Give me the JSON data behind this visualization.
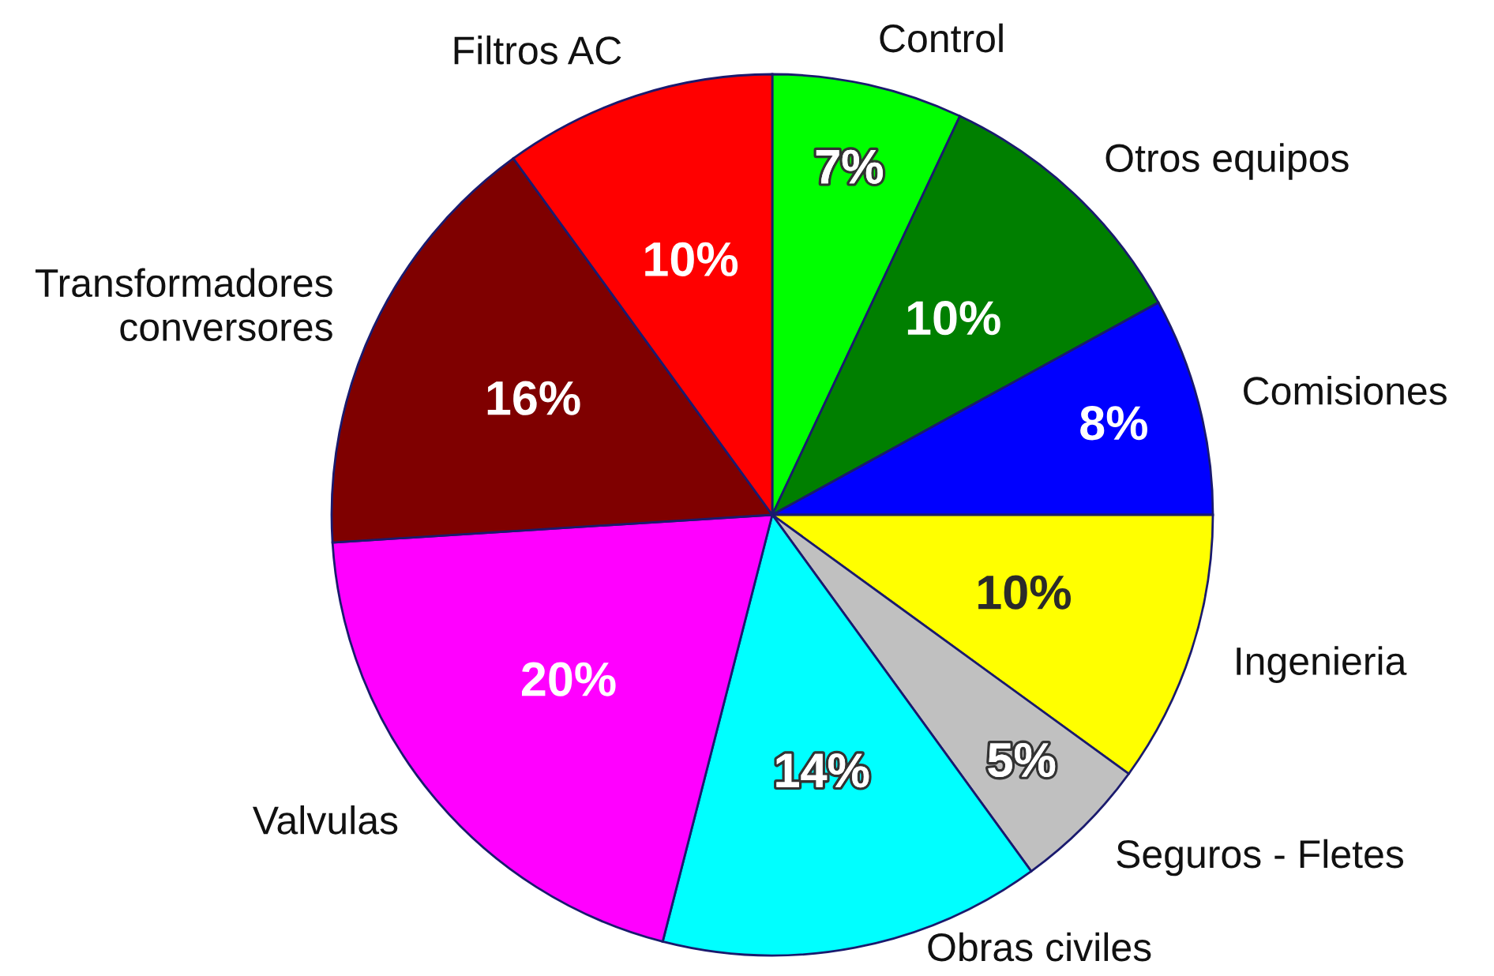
{
  "chart_data": {
    "type": "pie",
    "categories": [
      "Control",
      "Otros equipos",
      "Comisiones",
      "Ingenieria",
      "Seguros - Fletes",
      "Obras civiles",
      "Valvulas",
      "Transformadores\nconversores",
      "Filtros AC"
    ],
    "values": [
      7,
      10,
      8,
      10,
      5,
      14,
      20,
      16,
      10
    ],
    "colors": [
      "#00ff00",
      "#007f00",
      "#0000ff",
      "#ffff00",
      "#c0c0c0",
      "#00ffff",
      "#ff00ff",
      "#7f0000",
      "#ff0000"
    ],
    "value_labels": [
      "7%",
      "10%",
      "8%",
      "10%",
      "5%",
      "14%",
      "20%",
      "16%",
      "10%"
    ],
    "legend": false
  }
}
